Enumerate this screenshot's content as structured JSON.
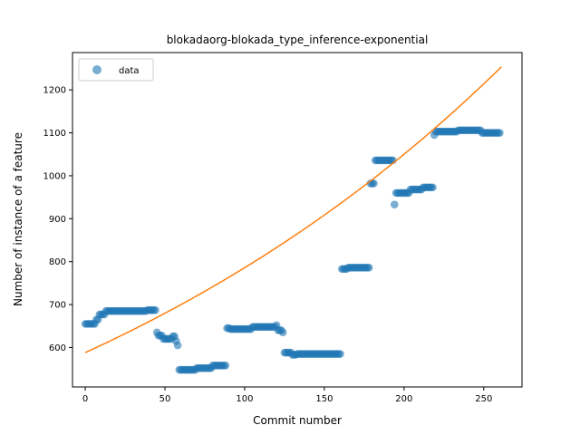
{
  "chart_data": {
    "type": "scatter",
    "title": "blokadaorg-blokada_type_inference-exponential",
    "xlabel": "Commit number",
    "ylabel": "Number of instance of a feature",
    "xlim": [
      -8,
      274
    ],
    "ylim": [
      508,
      1287
    ],
    "xticks": [
      0,
      50,
      100,
      150,
      200,
      250
    ],
    "yticks": [
      600,
      700,
      800,
      900,
      1000,
      1100,
      1200
    ],
    "grid": false,
    "legend": {
      "position": "top-left",
      "entries": [
        "data"
      ]
    },
    "series": [
      {
        "name": "data",
        "kind": "scatter",
        "color": "#1f77b4",
        "segments": [
          {
            "x0": 0,
            "x1": 6,
            "y": 655
          },
          {
            "x0": 7,
            "x1": 8,
            "y": 665
          },
          {
            "x0": 9,
            "x1": 12,
            "y": 677
          },
          {
            "x0": 13,
            "x1": 38,
            "y": 685
          },
          {
            "x0": 39,
            "x1": 44,
            "y": 687
          },
          {
            "x0": 45,
            "x1": 45,
            "y": 635
          },
          {
            "x0": 46,
            "x1": 48,
            "y": 628
          },
          {
            "x0": 49,
            "x1": 54,
            "y": 620
          },
          {
            "x0": 55,
            "x1": 56,
            "y": 626
          },
          {
            "x0": 57,
            "x1": 57,
            "y": 615
          },
          {
            "x0": 58,
            "x1": 58,
            "y": 605
          },
          {
            "x0": 59,
            "x1": 69,
            "y": 548
          },
          {
            "x0": 70,
            "x1": 79,
            "y": 552
          },
          {
            "x0": 80,
            "x1": 88,
            "y": 558
          },
          {
            "x0": 89,
            "x1": 90,
            "y": 645
          },
          {
            "x0": 91,
            "x1": 104,
            "y": 643
          },
          {
            "x0": 105,
            "x1": 119,
            "y": 648
          },
          {
            "x0": 120,
            "x1": 120,
            "y": 652
          },
          {
            "x0": 121,
            "x1": 123,
            "y": 640
          },
          {
            "x0": 124,
            "x1": 124,
            "y": 635
          },
          {
            "x0": 125,
            "x1": 129,
            "y": 588
          },
          {
            "x0": 130,
            "x1": 132,
            "y": 583
          },
          {
            "x0": 133,
            "x1": 160,
            "y": 585
          },
          {
            "x0": 161,
            "x1": 164,
            "y": 783
          },
          {
            "x0": 165,
            "x1": 178,
            "y": 786
          },
          {
            "x0": 179,
            "x1": 181,
            "y": 982
          },
          {
            "x0": 182,
            "x1": 193,
            "y": 1036
          },
          {
            "x0": 194,
            "x1": 194,
            "y": 933
          },
          {
            "x0": 195,
            "x1": 203,
            "y": 960
          },
          {
            "x0": 204,
            "x1": 211,
            "y": 968
          },
          {
            "x0": 212,
            "x1": 218,
            "y": 973
          },
          {
            "x0": 219,
            "x1": 219,
            "y": 1095
          },
          {
            "x0": 220,
            "x1": 233,
            "y": 1103
          },
          {
            "x0": 234,
            "x1": 248,
            "y": 1106
          },
          {
            "x0": 249,
            "x1": 260,
            "y": 1100
          }
        ]
      },
      {
        "name": "",
        "kind": "line",
        "color": "#ff7f0e",
        "model": "exponential",
        "a": 588,
        "b": 0.0029,
        "x_range": [
          0,
          261
        ]
      }
    ]
  }
}
